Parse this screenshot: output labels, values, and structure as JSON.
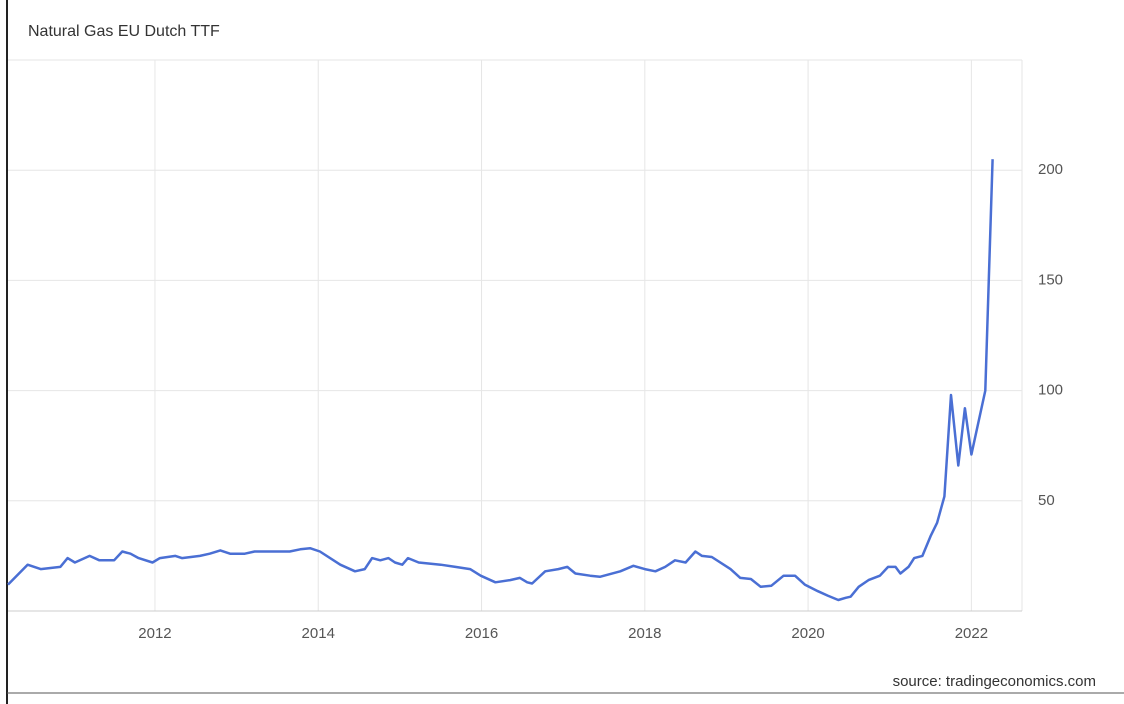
{
  "chart_data": {
    "type": "line",
    "title": "Natural Gas EU Dutch TTF",
    "source": "source: tradingeconomics.com",
    "color": "#4a6fd4",
    "grid": true,
    "xlim": [
      2010.2,
      2022.62
    ],
    "xticks": [
      2012,
      2014,
      2016,
      2018,
      2020,
      2022
    ],
    "ylim": [
      0,
      250
    ],
    "yticks": [
      50,
      100,
      150,
      200
    ],
    "x": [
      2010.2,
      2010.44,
      2010.6,
      2010.84,
      2010.93,
      2011.02,
      2011.2,
      2011.32,
      2011.5,
      2011.6,
      2011.7,
      2011.8,
      2011.97,
      2012.06,
      2012.25,
      2012.33,
      2012.55,
      2012.67,
      2012.8,
      2012.92,
      2013.1,
      2013.22,
      2013.65,
      2013.78,
      2013.9,
      2014.02,
      2014.27,
      2014.45,
      2014.57,
      2014.66,
      2014.76,
      2014.86,
      2014.94,
      2015.03,
      2015.1,
      2015.23,
      2015.5,
      2015.68,
      2015.86,
      2015.99,
      2016.17,
      2016.35,
      2016.47,
      2016.56,
      2016.62,
      2016.78,
      2016.94,
      2017.05,
      2017.15,
      2017.33,
      2017.45,
      2017.7,
      2017.86,
      2018.0,
      2018.13,
      2018.25,
      2018.37,
      2018.5,
      2018.62,
      2018.7,
      2018.82,
      2019.05,
      2019.17,
      2019.3,
      2019.42,
      2019.55,
      2019.7,
      2019.84,
      2019.96,
      2020.12,
      2020.24,
      2020.37,
      2020.46,
      2020.52,
      2020.62,
      2020.74,
      2020.88,
      2020.98,
      2021.07,
      2021.13,
      2021.23,
      2021.3,
      2021.4,
      2021.5,
      2021.58,
      2021.67,
      2021.75,
      2021.84,
      2021.92,
      2022.0,
      2022.17,
      2022.26
    ],
    "values": [
      12,
      21,
      19,
      20,
      24,
      22,
      25,
      23,
      23,
      27,
      26,
      24,
      22,
      24,
      25,
      24,
      25,
      26,
      27.5,
      26,
      26,
      27,
      27,
      28,
      28.5,
      27,
      21,
      18,
      19,
      24,
      23,
      24,
      22,
      21,
      24,
      22,
      21,
      20,
      19,
      16,
      13,
      14,
      15,
      13,
      12.5,
      18,
      19,
      20,
      17,
      16,
      15.5,
      18,
      20.5,
      19,
      18,
      20,
      23,
      22,
      27,
      25,
      24.5,
      19,
      15,
      14.5,
      11,
      11.5,
      16,
      16,
      12,
      9,
      7,
      5,
      6,
      6.5,
      11,
      14,
      16,
      20,
      20,
      17,
      20,
      24,
      25,
      34,
      40,
      52,
      98,
      66,
      92,
      71,
      100,
      205
    ]
  }
}
